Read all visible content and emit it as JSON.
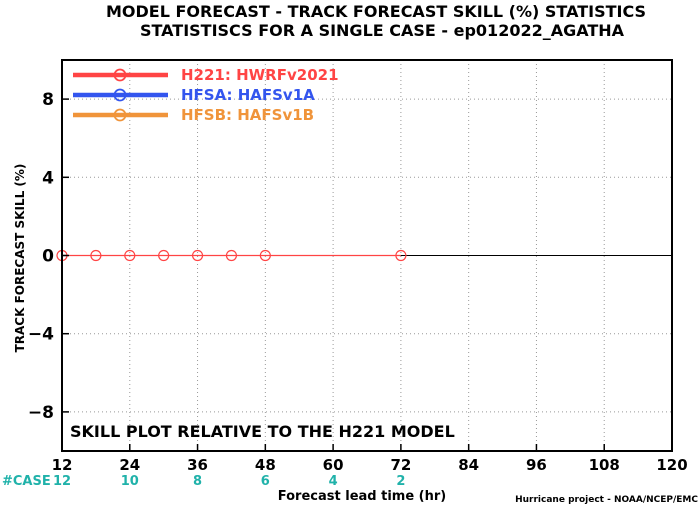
{
  "chart_data": {
    "type": "line",
    "title": "MODEL FORECAST - TRACK FORECAST SKILL (%) STATISTICS",
    "subtitle": "STATISTISCS FOR A SINGLE CASE - ep012022_AGATHA",
    "xlabel": "Forecast lead time (hr)",
    "ylabel": "TRACK FORECAST SKILL (%)",
    "xlim": [
      12,
      120
    ],
    "ylim": [
      -10,
      10
    ],
    "xticks": [
      12,
      24,
      36,
      48,
      60,
      72,
      84,
      96,
      108,
      120
    ],
    "yticks": [
      -8,
      -4,
      0,
      4,
      8
    ],
    "zero_line": 0,
    "grid": true,
    "legend_position": "top-left",
    "annotation": "SKILL PLOT RELATIVE TO THE H221 MODEL",
    "footer": "Hurricane project - NOAA/NCEP/EMC",
    "cases": {
      "label": "#CASE",
      "x": [
        12,
        24,
        36,
        48,
        60,
        72
      ],
      "values": [
        "12",
        "10",
        "8",
        "6",
        "4",
        "2"
      ],
      "color": "#20b2aa"
    },
    "series": [
      {
        "name": "H221: HWRFv2021",
        "color": "#ff4444",
        "x": [
          12,
          18,
          24,
          30,
          36,
          42,
          48,
          72
        ],
        "values": [
          0,
          0,
          0,
          0,
          0,
          0,
          0,
          0
        ]
      },
      {
        "name": "HFSA: HAFSv1A",
        "color": "#3355ee",
        "x": [],
        "values": []
      },
      {
        "name": "HFSB: HAFSv1B",
        "color": "#f0943a",
        "x": [],
        "values": []
      }
    ]
  }
}
